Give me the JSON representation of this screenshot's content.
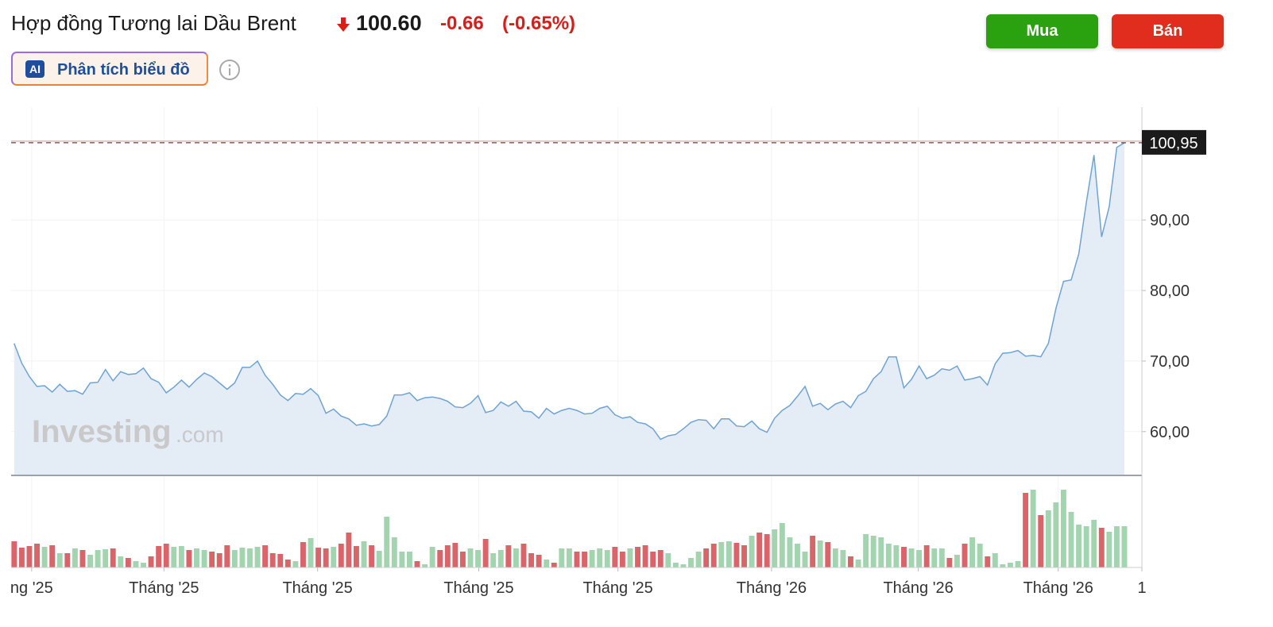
{
  "header": {
    "title": "Hợp đồng Tương lai Dầu Brent",
    "price": "100.60",
    "change": "-0.66",
    "change_percent": "(-0.65%)"
  },
  "ai_button": {
    "badge": "AI",
    "label": "Phân tích biểu đồ"
  },
  "buttons": [
    "Mua",
    "Bán"
  ],
  "watermark": {
    "brand": "Investing",
    "suffix": ".com"
  },
  "chart_data": {
    "type": "area",
    "color": "#6fa3d3",
    "fill": "#e4ecf5",
    "grid": true,
    "values": [
      72.5,
      69.7,
      67.8,
      66.4,
      66.5,
      65.6,
      66.7,
      65.7,
      65.8,
      65.3,
      66.9,
      67.0,
      68.8,
      67.2,
      68.5,
      68.1,
      68.2,
      69.0,
      67.5,
      67.0,
      65.5,
      66.3,
      67.3,
      66.3,
      67.4,
      68.3,
      67.8,
      66.9,
      66.0,
      66.9,
      69.1,
      69.1,
      70.0,
      68.0,
      66.7,
      65.2,
      64.4,
      65.4,
      65.3,
      66.1,
      65.1,
      62.6,
      63.2,
      62.2,
      61.8,
      60.9,
      61.1,
      60.8,
      61.0,
      62.2,
      65.2,
      65.2,
      65.5,
      64.4,
      64.8,
      64.9,
      64.7,
      64.3,
      63.5,
      63.4,
      64.0,
      65.1,
      62.7,
      63.0,
      64.2,
      63.6,
      64.3,
      62.9,
      62.8,
      61.9,
      63.3,
      62.5,
      63.0,
      63.3,
      63.0,
      62.5,
      62.6,
      63.3,
      63.6,
      62.4,
      61.9,
      62.1,
      61.3,
      61.1,
      60.4,
      58.9,
      59.4,
      59.6,
      60.4,
      61.3,
      61.7,
      61.6,
      60.4,
      61.8,
      61.8,
      60.8,
      60.7,
      61.5,
      60.4,
      59.9,
      61.9,
      63.0,
      63.7,
      65.0,
      66.4,
      63.6,
      64.0,
      63.1,
      63.9,
      64.3,
      63.4,
      65.1,
      65.7,
      67.5,
      68.5,
      70.6,
      70.6,
      66.2,
      67.4,
      69.3,
      67.5,
      68.0,
      68.9,
      68.7,
      69.3,
      67.3,
      67.5,
      67.8,
      66.6,
      69.6,
      71.1,
      71.2,
      71.5,
      70.7,
      70.8,
      70.6,
      72.5,
      77.5,
      81.3,
      81.5,
      85.2,
      92.5,
      99.2,
      87.6,
      91.9,
      100.3,
      100.95
    ],
    "xlim": [
      -0.4,
      148.3
    ],
    "xticks": [
      {
        "value": 2.3,
        "label": "ng '25"
      },
      {
        "value": 19.7,
        "label": "Tháng '25"
      },
      {
        "value": 39.9,
        "label": "Tháng '25"
      },
      {
        "value": 61.1,
        "label": "Tháng '25"
      },
      {
        "value": 79.4,
        "label": "Tháng '25"
      },
      {
        "value": 99.6,
        "label": "Tháng '26"
      },
      {
        "value": 118.9,
        "label": "Tháng '26"
      },
      {
        "value": 137.3,
        "label": "Tháng '26"
      },
      {
        "value": 148.3,
        "label": "1"
      }
    ],
    "ylim": [
      53.9,
      106
    ],
    "yticks": [
      {
        "value": 60,
        "label": "60,00"
      },
      {
        "value": 70,
        "label": "70,00"
      },
      {
        "value": 80,
        "label": "80,00"
      },
      {
        "value": 90,
        "label": "90,00"
      }
    ],
    "last_price": {
      "value": 100.95,
      "label": "100,95"
    },
    "volume": {
      "up_color": "#a3d4b0",
      "down_color": "#d9646a",
      "ylim": [
        0,
        115
      ],
      "values": [
        33,
        25,
        27,
        30,
        26,
        28,
        18,
        18,
        24,
        22,
        16,
        22,
        23,
        24,
        14,
        12,
        8,
        6,
        14,
        27,
        30,
        26,
        27,
        22,
        24,
        22,
        20,
        18,
        28,
        22,
        25,
        24,
        26,
        28,
        18,
        17,
        10,
        8,
        32,
        37,
        25,
        24,
        26,
        30,
        44,
        27,
        33,
        28,
        21,
        64,
        38,
        20,
        20,
        8,
        4,
        26,
        22,
        28,
        31,
        20,
        24,
        22,
        36,
        18,
        22,
        28,
        24,
        30,
        18,
        16,
        10,
        6,
        24,
        24,
        20,
        20,
        22,
        24,
        22,
        26,
        20,
        24,
        26,
        28,
        20,
        22,
        18,
        6,
        4,
        12,
        20,
        24,
        30,
        32,
        33,
        31,
        28,
        40,
        44,
        42,
        48,
        56,
        38,
        30,
        20,
        40,
        34,
        32,
        24,
        22,
        14,
        10,
        42,
        40,
        38,
        30,
        28,
        26,
        24,
        22,
        28,
        24,
        24,
        12,
        16,
        30,
        38,
        30,
        14,
        18,
        4,
        6,
        8,
        94,
        98,
        66,
        72,
        82,
        98,
        70,
        54,
        52,
        60,
        50,
        45,
        52,
        52
      ]
    }
  }
}
